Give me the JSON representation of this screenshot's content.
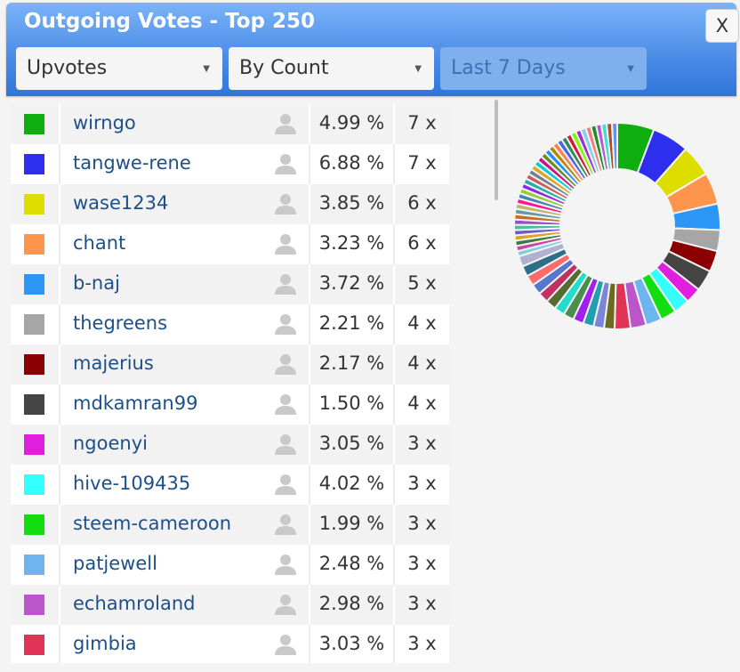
{
  "window": {
    "title": "Outgoing Votes - Top 250",
    "close_label": "X"
  },
  "filters": {
    "vote_type": {
      "value": "Upvotes"
    },
    "sort": {
      "value": "By Count"
    },
    "period": {
      "value": "Last 7 Days",
      "disabled": true
    }
  },
  "icons": {
    "caret": "caret-down-icon",
    "profile": "user-profile-icon"
  },
  "rows": [
    {
      "name": "wirngo",
      "percent": "4.99 %",
      "count": "7 x",
      "color": "#0fae0f"
    },
    {
      "name": "tangwe-rene",
      "percent": "6.88 %",
      "count": "7 x",
      "color": "#2e2eee"
    },
    {
      "name": "wase1234",
      "percent": "3.85 %",
      "count": "6 x",
      "color": "#dddd00"
    },
    {
      "name": "chant",
      "percent": "3.23 %",
      "count": "6 x",
      "color": "#ff944d"
    },
    {
      "name": "b-naj",
      "percent": "3.72 %",
      "count": "5 x",
      "color": "#2b96f5"
    },
    {
      "name": "thegreens",
      "percent": "2.21 %",
      "count": "4 x",
      "color": "#a6a6a6"
    },
    {
      "name": "majerius",
      "percent": "2.17 %",
      "count": "4 x",
      "color": "#8b0000"
    },
    {
      "name": "mdkamran99",
      "percent": "1.50 %",
      "count": "4 x",
      "color": "#444444"
    },
    {
      "name": "ngoenyi",
      "percent": "3.05 %",
      "count": "3 x",
      "color": "#e01ee0"
    },
    {
      "name": "hive-109435",
      "percent": "4.02 %",
      "count": "3 x",
      "color": "#33ffff"
    },
    {
      "name": "steem-cameroon",
      "percent": "1.99 %",
      "count": "3 x",
      "color": "#11dd11"
    },
    {
      "name": "patjewell",
      "percent": "2.48 %",
      "count": "3 x",
      "color": "#6eb5ef"
    },
    {
      "name": "echamroland",
      "percent": "2.98 %",
      "count": "3 x",
      "color": "#bb55cc"
    },
    {
      "name": "gimbia",
      "percent": "3.03 %",
      "count": "3 x",
      "color": "#e03355"
    }
  ],
  "chart_data": {
    "type": "pie",
    "style": "donut",
    "legend": "none",
    "categories": [
      "wirngo",
      "tangwe-rene",
      "wase1234",
      "chant",
      "b-naj",
      "thegreens",
      "majerius",
      "mdkamran99",
      "ngoenyi",
      "hive-109435",
      "steem-cameroon",
      "patjewell",
      "echamroland",
      "gimbia"
    ],
    "values": [
      7,
      7,
      6,
      6,
      5,
      4,
      4,
      4,
      3,
      3,
      3,
      3,
      3,
      3
    ],
    "colors": [
      "#0fae0f",
      "#2e2eee",
      "#dddd00",
      "#ff944d",
      "#2b96f5",
      "#a6a6a6",
      "#8b0000",
      "#444444",
      "#e01ee0",
      "#33ffff",
      "#11dd11",
      "#6eb5ef",
      "#bb55cc",
      "#e03355"
    ],
    "other_values": [
      2,
      2,
      2,
      2,
      2,
      2,
      2,
      2,
      2,
      2,
      2,
      2,
      1,
      1,
      1,
      1,
      1,
      1,
      1,
      1,
      1,
      1,
      1,
      1,
      1,
      1,
      1,
      1,
      1,
      1,
      1,
      1,
      1,
      1,
      1,
      1,
      1,
      1,
      1,
      1,
      1,
      1,
      1,
      1,
      1,
      1,
      1,
      1
    ],
    "other_colors": [
      "#6b6b20",
      "#7b86d6",
      "#1f9faf",
      "#a020f0",
      "#4c8c4c",
      "#22ddcc",
      "#556b2f",
      "#c03060",
      "#5577cc",
      "#ff6a6a",
      "#2d6e8a",
      "#b0b0d0",
      "#7fcfdf",
      "#cc44aa",
      "#3a7a3a",
      "#e0a020",
      "#6a5acd",
      "#48c0a0",
      "#9b4dca",
      "#d2691e",
      "#5f9ea0",
      "#bdb76b",
      "#ff1493",
      "#4682b4",
      "#9acd32",
      "#8a2be2",
      "#20b2aa",
      "#cd5c5c",
      "#708090",
      "#daa520",
      "#00ced1",
      "#c71585",
      "#6b8e23",
      "#1e90ff",
      "#b8860b",
      "#ff7f50",
      "#4169e1",
      "#2e8b57",
      "#dc143c",
      "#7cfc00",
      "#9932cc",
      "#87ceeb",
      "#f08080",
      "#228b22",
      "#ba55d3",
      "#40e0d0",
      "#a0522d",
      "#6495ed"
    ]
  }
}
